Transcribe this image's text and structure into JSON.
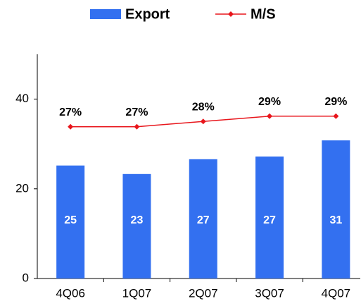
{
  "chart_data": {
    "type": "bar",
    "categories": [
      "4Q06",
      "1Q07",
      "2Q07",
      "3Q07",
      "4Q07"
    ],
    "ylim": [
      0,
      50
    ],
    "yticks": [
      0,
      20,
      40
    ],
    "y2lim": [
      -1.7,
      40.7
    ],
    "series": [
      {
        "name": "Export",
        "type": "bar",
        "color": "#3370f0",
        "values": [
          25.2,
          23.3,
          26.6,
          27.2,
          30.8
        ],
        "value_labels": [
          "25",
          "23",
          "27",
          "27",
          "31"
        ]
      },
      {
        "name": "M/S",
        "type": "line",
        "axis": "y2",
        "color": "#e8161c",
        "values": [
          27,
          27,
          28,
          29,
          29
        ],
        "value_labels": [
          "27%",
          "27%",
          "28%",
          "29%",
          "29%"
        ]
      }
    ],
    "legend": "top"
  }
}
